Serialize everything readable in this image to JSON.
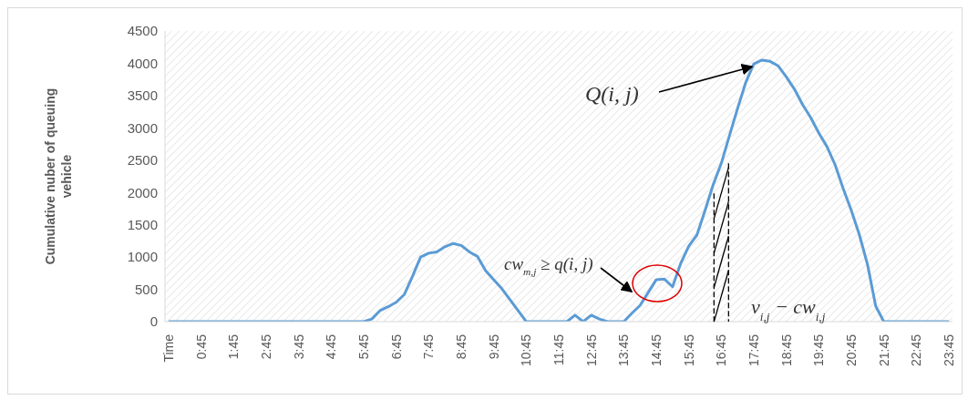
{
  "chart_data": {
    "type": "line",
    "ylabel": "Cumulative nuber of queuing vehicle",
    "categories": [
      "Time",
      null,
      null,
      null,
      "0:45",
      null,
      null,
      null,
      "1:45",
      null,
      null,
      null,
      "2:45",
      null,
      null,
      null,
      "3:45",
      null,
      null,
      null,
      "4:45",
      null,
      null,
      null,
      "5:45",
      null,
      null,
      null,
      "6:45",
      null,
      null,
      null,
      "7:45",
      null,
      null,
      null,
      "8:45",
      null,
      null,
      null,
      "9:45",
      null,
      null,
      null,
      "10:45",
      null,
      null,
      null,
      "11:45",
      null,
      null,
      null,
      "12:45",
      null,
      null,
      null,
      "13:45",
      null,
      null,
      null,
      "14:45",
      null,
      null,
      null,
      "15:45",
      null,
      null,
      null,
      "16:45",
      null,
      null,
      null,
      "17:45",
      null,
      null,
      null,
      "18:45",
      null,
      null,
      null,
      "19:45",
      null,
      null,
      null,
      "20:45",
      null,
      null,
      null,
      "21:45",
      null,
      null,
      null,
      "22:45",
      null,
      null,
      null,
      "23:45"
    ],
    "series": [
      {
        "color": "#5b9bd5",
        "values": [
          0,
          0,
          0,
          0,
          0,
          0,
          0,
          0,
          0,
          0,
          0,
          0,
          0,
          0,
          0,
          0,
          0,
          0,
          0,
          0,
          0,
          0,
          0,
          0,
          0,
          40,
          170,
          230,
          300,
          420,
          700,
          1000,
          1060,
          1080,
          1160,
          1210,
          1180,
          1080,
          1010,
          790,
          650,
          510,
          340,
          170,
          0,
          0,
          0,
          0,
          0,
          0,
          100,
          0,
          100,
          40,
          0,
          0,
          0,
          130,
          250,
          450,
          650,
          660,
          540,
          900,
          1170,
          1340,
          1720,
          2120,
          2450,
          2880,
          3300,
          3700,
          3990,
          4050,
          4030,
          3960,
          3790,
          3600,
          3360,
          3160,
          2920,
          2710,
          2430,
          2060,
          1720,
          1340,
          880,
          240,
          0,
          0,
          0,
          0,
          0,
          0,
          0,
          0,
          0
        ]
      }
    ],
    "ylim": [
      0,
      4500
    ],
    "yticks": [
      0,
      500,
      1000,
      1500,
      2000,
      2500,
      3000,
      3500,
      4000,
      4500
    ],
    "grid": false,
    "marker": "none",
    "line_style": "solid",
    "annotations": [
      {
        "text": "Q(i, j)",
        "x": "17:45",
        "y": 3990
      },
      "cw$_{m,j}$ ≥ q(i, j)",
      {
        "text": "v$_{i,j}$ − cw$_{i,j}$",
        "x": "16:45",
        "y": 2450
      }
    ]
  }
}
